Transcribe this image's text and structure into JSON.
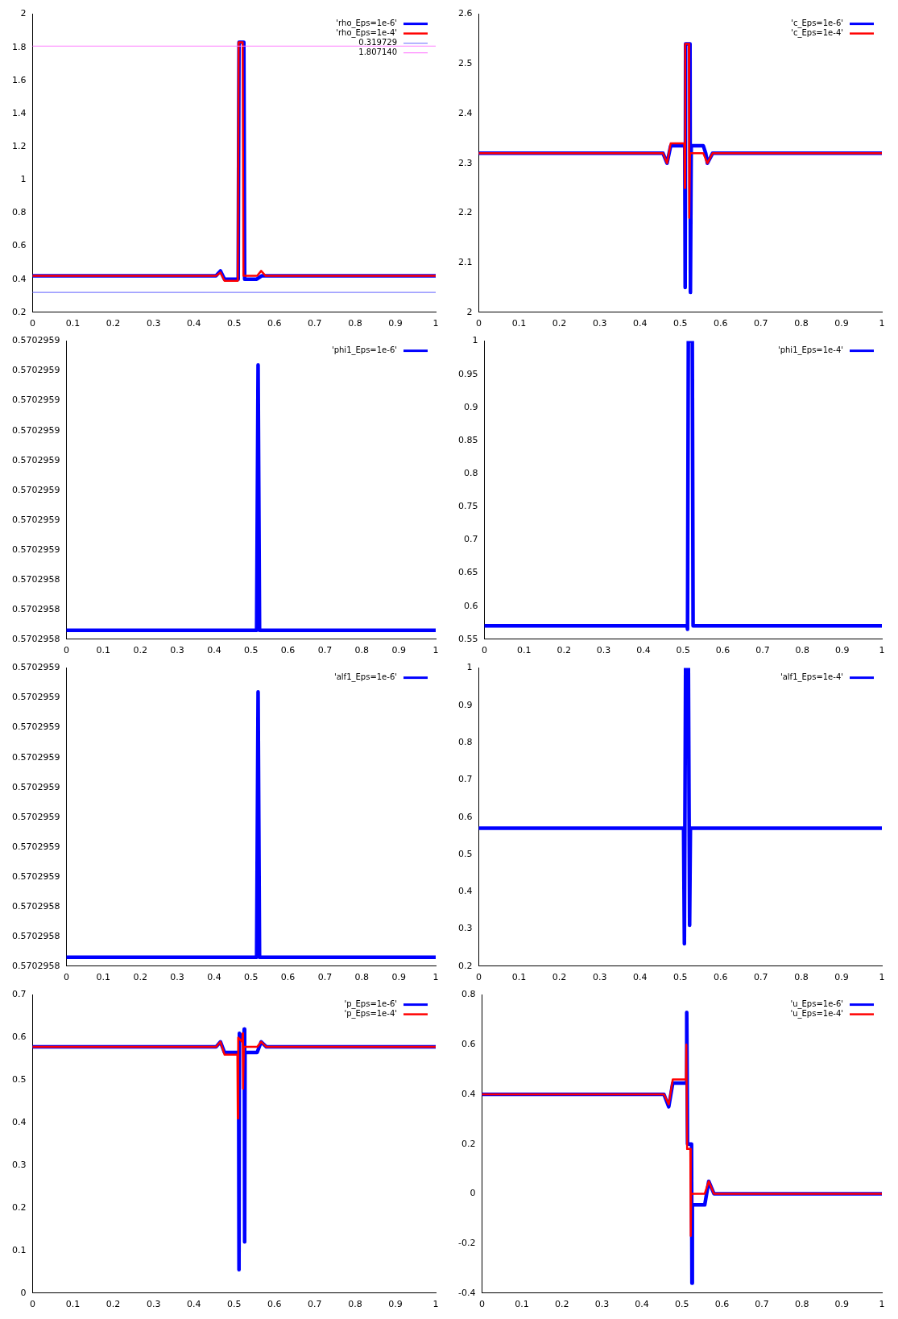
{
  "chart_data": [
    {
      "type": "line",
      "xlim": [
        0,
        1
      ],
      "xticks": [
        0,
        0.1,
        0.2,
        0.3,
        0.4,
        0.5,
        0.6,
        0.7,
        0.8,
        0.9,
        1
      ],
      "ylim": [
        0.2,
        2
      ],
      "yticks": [
        0.2,
        0.4,
        0.6,
        0.8,
        1,
        1.2,
        1.4,
        1.6,
        1.8,
        2
      ],
      "legend": "top right",
      "series": [
        {
          "name": "'rho_Eps=1e-6'",
          "color": "#0000ff",
          "x": [
            0,
            0.455,
            0.466,
            0.476,
            0.51,
            0.512,
            0.524,
            0.526,
            0.556,
            0.568,
            1
          ],
          "values": [
            0.42,
            0.42,
            0.45,
            0.4,
            0.4,
            1.83,
            1.83,
            0.4,
            0.4,
            0.42,
            0.42
          ]
        },
        {
          "name": "'rho_Eps=1e-4'",
          "color": "#ff0000",
          "x": [
            0,
            0.455,
            0.466,
            0.476,
            0.509,
            0.511,
            0.521,
            0.523,
            0.557,
            0.567,
            0.578,
            1
          ],
          "values": [
            0.42,
            0.42,
            0.44,
            0.39,
            0.39,
            1.83,
            1.83,
            0.42,
            0.42,
            0.45,
            0.42,
            0.42
          ]
        },
        {
          "name": "0.319729",
          "color": "#8080ff",
          "x": [
            0,
            1
          ],
          "values": [
            0.319729,
            0.319729
          ]
        },
        {
          "name": "1.807140",
          "color": "#ff80ff",
          "x": [
            0,
            1
          ],
          "values": [
            1.80714,
            1.80714
          ]
        }
      ]
    },
    {
      "type": "line",
      "xlim": [
        0,
        1
      ],
      "xticks": [
        0,
        0.1,
        0.2,
        0.3,
        0.4,
        0.5,
        0.6,
        0.7,
        0.8,
        0.9,
        1
      ],
      "ylim": [
        2,
        2.6
      ],
      "yticks": [
        2,
        2.1,
        2.2,
        2.3,
        2.4,
        2.5,
        2.6
      ],
      "legend": "top right",
      "series": [
        {
          "name": "'c_Eps=1e-6'",
          "color": "#0000ff",
          "x": [
            0,
            0.457,
            0.467,
            0.476,
            0.511,
            0.512,
            0.513,
            0.524,
            0.525,
            0.527,
            0.557,
            0.563,
            0.567,
            0.58,
            1
          ],
          "values": [
            2.32,
            2.32,
            2.3,
            2.335,
            2.335,
            2.05,
            2.54,
            2.54,
            2.04,
            2.335,
            2.335,
            2.32,
            2.3,
            2.32,
            2.32
          ]
        },
        {
          "name": "'c_Eps=1e-4'",
          "color": "#ff0000",
          "x": [
            0,
            0.457,
            0.467,
            0.476,
            0.51,
            0.511,
            0.512,
            0.521,
            0.522,
            0.524,
            0.557,
            0.567,
            0.58,
            1
          ],
          "values": [
            2.32,
            2.32,
            2.3,
            2.34,
            2.34,
            2.25,
            2.54,
            2.54,
            2.19,
            2.32,
            2.32,
            2.3,
            2.32,
            2.32
          ]
        }
      ]
    },
    {
      "type": "line",
      "xlim": [
        0,
        1
      ],
      "xticks": [
        0,
        0.1,
        0.2,
        0.3,
        0.4,
        0.5,
        0.6,
        0.7,
        0.8,
        0.9,
        1
      ],
      "ylim": [
        0.570295847,
        0.570295857
      ],
      "yticks": [
        {
          "value": 0.570295847,
          "label": "0.5702958"
        },
        {
          "value": 0.570295848,
          "label": "0.5702958"
        },
        {
          "value": 0.570295849,
          "label": "0.5702958"
        },
        {
          "value": 0.57029585,
          "label": "0.5702959"
        },
        {
          "value": 0.570295851,
          "label": "0.5702959"
        },
        {
          "value": 0.570295852,
          "label": "0.5702959"
        },
        {
          "value": 0.570295853,
          "label": "0.5702959"
        },
        {
          "value": 0.570295854,
          "label": "0.5702959"
        },
        {
          "value": 0.570295855,
          "label": "0.5702959"
        },
        {
          "value": 0.570295856,
          "label": "0.5702959"
        },
        {
          "value": 0.570295857,
          "label": "0.5702959"
        }
      ],
      "legend": "top right",
      "series": [
        {
          "name": "'phi1_Eps=1e-6'",
          "color": "#0000ff",
          "x": [
            0,
            0.515,
            0.519,
            0.523,
            1
          ],
          "values": [
            0.5702958473,
            0.5702958473,
            0.5702958562,
            0.5702958473,
            0.5702958473
          ]
        }
      ]
    },
    {
      "type": "line",
      "xlim": [
        0,
        1
      ],
      "xticks": [
        0,
        0.1,
        0.2,
        0.3,
        0.4,
        0.5,
        0.6,
        0.7,
        0.8,
        0.9,
        1
      ],
      "ylim": [
        0.55,
        1
      ],
      "yticks": [
        0.55,
        0.6,
        0.65,
        0.7,
        0.75,
        0.8,
        0.85,
        0.9,
        0.95,
        1
      ],
      "legend": "top right",
      "series": [
        {
          "name": "'phi1_Eps=1e-4'",
          "color": "#0000ff",
          "x": [
            0,
            0.51,
            0.511,
            0.513,
            0.523,
            0.525,
            1
          ],
          "values": [
            0.57,
            0.57,
            0.565,
            1,
            1,
            0.57,
            0.57
          ]
        }
      ]
    },
    {
      "type": "line",
      "xlim": [
        0,
        1
      ],
      "xticks": [
        0,
        0.1,
        0.2,
        0.3,
        0.4,
        0.5,
        0.6,
        0.7,
        0.8,
        0.9,
        1
      ],
      "ylim": [
        0.570295847,
        0.570295857
      ],
      "yticks": [
        {
          "value": 0.570295847,
          "label": "0.5702958"
        },
        {
          "value": 0.570295848,
          "label": "0.5702958"
        },
        {
          "value": 0.570295849,
          "label": "0.5702958"
        },
        {
          "value": 0.57029585,
          "label": "0.5702959"
        },
        {
          "value": 0.570295851,
          "label": "0.5702959"
        },
        {
          "value": 0.570295852,
          "label": "0.5702959"
        },
        {
          "value": 0.570295853,
          "label": "0.5702959"
        },
        {
          "value": 0.570295854,
          "label": "0.5702959"
        },
        {
          "value": 0.570295855,
          "label": "0.5702959"
        },
        {
          "value": 0.570295856,
          "label": "0.5702959"
        },
        {
          "value": 0.570295857,
          "label": "0.5702959"
        }
      ],
      "legend": "top right",
      "series": [
        {
          "name": "'alf1_Eps=1e-6'",
          "color": "#0000ff",
          "x": [
            0,
            0.515,
            0.519,
            0.523,
            1
          ],
          "values": [
            0.5702958473,
            0.5702958473,
            0.5702958562,
            0.5702958473,
            0.5702958473
          ]
        }
      ]
    },
    {
      "type": "line",
      "xlim": [
        0,
        1
      ],
      "xticks": [
        0,
        0.1,
        0.2,
        0.3,
        0.4,
        0.5,
        0.6,
        0.7,
        0.8,
        0.9,
        1
      ],
      "ylim": [
        0.2,
        1
      ],
      "yticks": [
        0.2,
        0.3,
        0.4,
        0.5,
        0.6,
        0.7,
        0.8,
        0.9,
        1
      ],
      "legend": "top right",
      "series": [
        {
          "name": "'alf1_Eps=1e-4'",
          "color": "#0000ff",
          "x": [
            0,
            0.508,
            0.51,
            0.513,
            0.52,
            0.523,
            0.525,
            1
          ],
          "values": [
            0.57,
            0.57,
            0.26,
            1,
            1,
            0.31,
            0.57,
            0.57
          ]
        }
      ]
    },
    {
      "type": "line",
      "xlim": [
        0,
        1
      ],
      "xticks": [
        0,
        0.1,
        0.2,
        0.3,
        0.4,
        0.5,
        0.6,
        0.7,
        0.8,
        0.9,
        1
      ],
      "ylim": [
        0,
        0.7
      ],
      "yticks": [
        0,
        0.1,
        0.2,
        0.3,
        0.4,
        0.5,
        0.6,
        0.7
      ],
      "legend": "top right",
      "series": [
        {
          "name": "'p_Eps=1e-6'",
          "color": "#0000ff",
          "x": [
            0,
            0.455,
            0.466,
            0.476,
            0.511,
            0.512,
            0.513,
            0.524,
            0.525,
            0.526,
            0.527,
            0.557,
            0.567,
            0.58,
            1
          ],
          "values": [
            0.578,
            0.578,
            0.59,
            0.565,
            0.565,
            0.055,
            0.61,
            0.59,
            0.62,
            0.12,
            0.565,
            0.565,
            0.59,
            0.578,
            0.578
          ]
        },
        {
          "name": "'p_Eps=1e-4'",
          "color": "#ff0000",
          "x": [
            0,
            0.455,
            0.466,
            0.476,
            0.508,
            0.509,
            0.51,
            0.52,
            0.521,
            0.522,
            0.524,
            0.557,
            0.567,
            0.58,
            1
          ],
          "values": [
            0.578,
            0.578,
            0.59,
            0.56,
            0.56,
            0.41,
            0.6,
            0.59,
            0.61,
            0.48,
            0.578,
            0.578,
            0.59,
            0.578,
            0.578
          ]
        }
      ]
    },
    {
      "type": "line",
      "xlim": [
        0,
        1
      ],
      "xticks": [
        0,
        0.1,
        0.2,
        0.3,
        0.4,
        0.5,
        0.6,
        0.7,
        0.8,
        0.9,
        1
      ],
      "ylim": [
        -0.4,
        0.8
      ],
      "yticks": [
        -0.4,
        -0.2,
        0,
        0.2,
        0.4,
        0.6,
        0.8
      ],
      "legend": "top right",
      "series": [
        {
          "name": "'u_Eps=1e-6'",
          "color": "#0000ff",
          "x": [
            0,
            0.455,
            0.467,
            0.477,
            0.511,
            0.512,
            0.514,
            0.524,
            0.525,
            0.526,
            0.557,
            0.567,
            0.58,
            1
          ],
          "values": [
            0.4,
            0.4,
            0.35,
            0.445,
            0.445,
            0.73,
            0.2,
            0.2,
            -0.36,
            -0.045,
            -0.045,
            0.05,
            0,
            0
          ]
        },
        {
          "name": "'u_Eps=1e-4'",
          "color": "#ff0000",
          "x": [
            0,
            0.455,
            0.467,
            0.477,
            0.51,
            0.511,
            0.513,
            0.521,
            0.522,
            0.523,
            0.557,
            0.567,
            0.58,
            1
          ],
          "values": [
            0.4,
            0.4,
            0.36,
            0.46,
            0.46,
            0.6,
            0.18,
            0.18,
            -0.17,
            0,
            0,
            0.05,
            0,
            0
          ]
        }
      ]
    }
  ]
}
